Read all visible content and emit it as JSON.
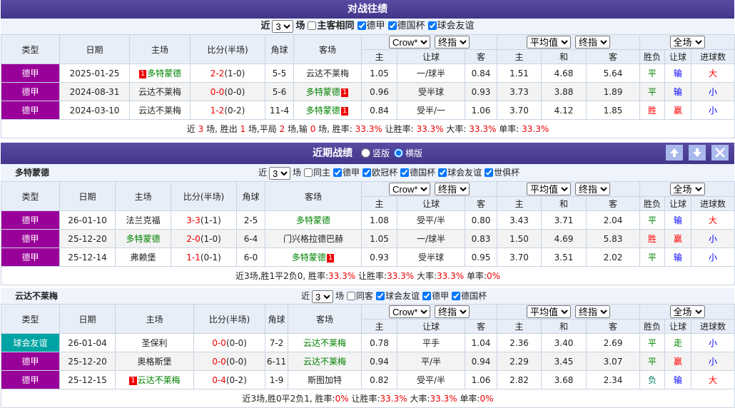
{
  "h2h": {
    "title": "对战往绩",
    "filter": {
      "prefix": "近",
      "count": "3",
      "suffix": "场",
      "checks": [
        {
          "label": "主客相同",
          "checked": false
        },
        {
          "label": "德甲",
          "checked": true
        },
        {
          "label": "德国杯",
          "checked": true
        },
        {
          "label": "球会友谊",
          "checked": true
        }
      ]
    },
    "table": {
      "columns": [
        "类型",
        "日期",
        "主场",
        "比分(半场)",
        "角球",
        "客场"
      ],
      "selects": [
        "Crow*",
        "终指",
        "平均值",
        "终指",
        "全场"
      ],
      "sub_columns": [
        "主",
        "让球",
        "客",
        "主",
        "和",
        "客",
        "胜负",
        "让球",
        "进球数"
      ],
      "rows": [
        {
          "type": "德甲",
          "type_color": "#990099",
          "date": "2025-01-25",
          "home_badge": "1",
          "home": "多特蒙德",
          "score": "2-2",
          "half": "(1-0)",
          "corner": "5-5",
          "away": "云达不莱梅",
          "odds": [
            "1.05",
            "一/球半",
            "0.84",
            "1.51",
            "4.68",
            "5.64"
          ],
          "results": [
            "平",
            "输",
            "大"
          ],
          "result_colors": [
            "#008000",
            "#0000ff",
            "#ff0000"
          ],
          "highlight": "home"
        },
        {
          "type": "德甲",
          "type_color": "#990099",
          "date": "2024-08-31",
          "home": "云达不莱梅",
          "score": "0-0",
          "half": "(0-0)",
          "corner": "5-6",
          "away": "多特蒙德",
          "away_badge": "1",
          "odds": [
            "0.96",
            "受半球",
            "0.93",
            "3.73",
            "3.88",
            "1.89"
          ],
          "results": [
            "平",
            "输",
            "小"
          ],
          "result_colors": [
            "#008000",
            "#0000ff",
            "#0000ff"
          ],
          "highlight": "away"
        },
        {
          "type": "德甲",
          "type_color": "#990099",
          "date": "2024-03-10",
          "home": "云达不莱梅",
          "score": "1-2",
          "half": "(0-2)",
          "corner": "11-4",
          "away": "多特蒙德",
          "away_badge": "1",
          "odds": [
            "0.84",
            "受半/一",
            "1.06",
            "3.70",
            "4.12",
            "1.85"
          ],
          "results": [
            "胜",
            "赢",
            "小"
          ],
          "result_colors": [
            "#ff0000",
            "#ff0000",
            "#0000ff"
          ],
          "highlight": "away"
        }
      ]
    },
    "summary": [
      "近 ",
      "3",
      " 场, 胜出 ",
      "1",
      " 场,平局 ",
      "2",
      " 场,输 ",
      "0",
      " 场, 胜率: ",
      "33.3%",
      " 让胜率: ",
      "33.3%",
      " 大率: ",
      "33.3%",
      " 单率: ",
      "33.3%"
    ]
  },
  "recent": {
    "title": "近期战绩",
    "views": [
      {
        "label": "竖版",
        "checked": false
      },
      {
        "label": "横版",
        "checked": true
      }
    ],
    "teams": [
      {
        "name": "多特蒙德",
        "filter": {
          "prefix": "近",
          "count": "3",
          "suffix": "场",
          "checks": [
            {
              "label": "同主",
              "checked": false
            },
            {
              "label": "德甲",
              "checked": true
            },
            {
              "label": "欧冠杯",
              "checked": true
            },
            {
              "label": "德国杯",
              "checked": true
            },
            {
              "label": "球会友谊",
              "checked": true
            },
            {
              "label": "世俱杯",
              "checked": true
            }
          ]
        },
        "table": {
          "columns": [
            "类型",
            "日期",
            "主场",
            "比分(半场)",
            "角球",
            "客场"
          ],
          "selects": [
            "Crow*",
            "终指",
            "平均值",
            "终指",
            "全场"
          ],
          "sub_columns": [
            "主",
            "让球",
            "客",
            "主",
            "和",
            "客",
            "胜负",
            "让球",
            "进球数"
          ],
          "rows": [
            {
              "type": "德甲",
              "type_color": "#990099",
              "date": "26-01-10",
              "home": "法兰克福",
              "score": "3-3",
              "half": "(1-1)",
              "corner": "2-5",
              "away": "多特蒙德",
              "odds": [
                "1.08",
                "受平/半",
                "0.80",
                "3.43",
                "3.71",
                "2.04"
              ],
              "results": [
                "平",
                "输",
                "大"
              ],
              "result_colors": [
                "#008000",
                "#0000ff",
                "#ff0000"
              ],
              "highlight": "away"
            },
            {
              "type": "德甲",
              "type_color": "#990099",
              "date": "25-12-20",
              "home": "多特蒙德",
              "score": "2-0",
              "half": "(1-0)",
              "corner": "6-4",
              "away": "门兴格拉德巴赫",
              "odds": [
                "1.05",
                "一/球半",
                "0.83",
                "1.50",
                "4.69",
                "5.83"
              ],
              "results": [
                "胜",
                "赢",
                "小"
              ],
              "result_colors": [
                "#ff0000",
                "#ff0000",
                "#0000ff"
              ],
              "highlight": "home"
            },
            {
              "type": "德甲",
              "type_color": "#990099",
              "date": "25-12-14",
              "home": "弗赖堡",
              "score": "1-1",
              "half": "(0-1)",
              "corner": "6-0",
              "away": "多特蒙德",
              "away_badge": "1",
              "odds": [
                "0.93",
                "受半球",
                "0.95",
                "3.70",
                "3.51",
                "2.02"
              ],
              "results": [
                "平",
                "输",
                "小"
              ],
              "result_colors": [
                "#008000",
                "#0000ff",
                "#0000ff"
              ],
              "highlight": "away"
            }
          ]
        },
        "summary": [
          "近3场,胜1平2负0, 胜率:",
          "33.3%",
          " 让胜率:",
          "33.3%",
          " 大率:",
          "33.3%",
          " 单率:",
          "0%"
        ]
      },
      {
        "name": "云达不莱梅",
        "filter": {
          "prefix": "近",
          "count": "3",
          "suffix": "场",
          "checks": [
            {
              "label": "同客",
              "checked": false
            },
            {
              "label": "球会友谊",
              "checked": true
            },
            {
              "label": "德甲",
              "checked": true
            },
            {
              "label": "德国杯",
              "checked": true
            }
          ]
        },
        "table": {
          "columns": [
            "类型",
            "日期",
            "主场",
            "比分(半场)",
            "角球",
            "客场"
          ],
          "selects": [
            "Crow*",
            "终指",
            "平均值",
            "终指",
            "全场"
          ],
          "sub_columns": [
            "主",
            "让球",
            "客",
            "主",
            "和",
            "客",
            "胜负",
            "让球",
            "进球数"
          ],
          "rows": [
            {
              "type": "球会友谊",
              "type_color": "#00a3a3",
              "date": "26-01-04",
              "home": "圣保利",
              "score": "0-0",
              "half": "(0-0)",
              "corner": "7-2",
              "away": "云达不莱梅",
              "odds": [
                "0.78",
                "平手",
                "1.04",
                "2.36",
                "3.40",
                "2.69"
              ],
              "results": [
                "平",
                "走",
                "小"
              ],
              "result_colors": [
                "#008000",
                "#008000",
                "#0000ff"
              ],
              "highlight": "away"
            },
            {
              "type": "德甲",
              "type_color": "#990099",
              "date": "25-12-20",
              "home": "奥格斯堡",
              "score": "0-0",
              "half": "(0-0)",
              "corner": "6-11",
              "away": "云达不莱梅",
              "odds": [
                "0.94",
                "平/半",
                "0.94",
                "2.29",
                "3.45",
                "3.07"
              ],
              "results": [
                "平",
                "赢",
                "小"
              ],
              "result_colors": [
                "#008000",
                "#ff0000",
                "#0000ff"
              ],
              "highlight": "away"
            },
            {
              "type": "德甲",
              "type_color": "#990099",
              "date": "25-12-15",
              "home_badge": "1",
              "home": "云达不莱梅",
              "score": "0-4",
              "half": "(0-2)",
              "corner": "1-9",
              "away": "斯图加特",
              "odds": [
                "0.82",
                "受平/半",
                "1.06",
                "2.82",
                "3.68",
                "2.34"
              ],
              "results": [
                "负",
                "输",
                "大"
              ],
              "result_colors": [
                "#008060",
                "#0000ff",
                "#ff0000"
              ],
              "highlight": "home"
            }
          ]
        },
        "summary": [
          "近3场,胜0平2负1, 胜率:",
          "0%",
          " 让胜率:",
          "33.3%",
          " 大率:",
          "33.3%",
          " 单率:",
          "0%"
        ]
      }
    ]
  }
}
